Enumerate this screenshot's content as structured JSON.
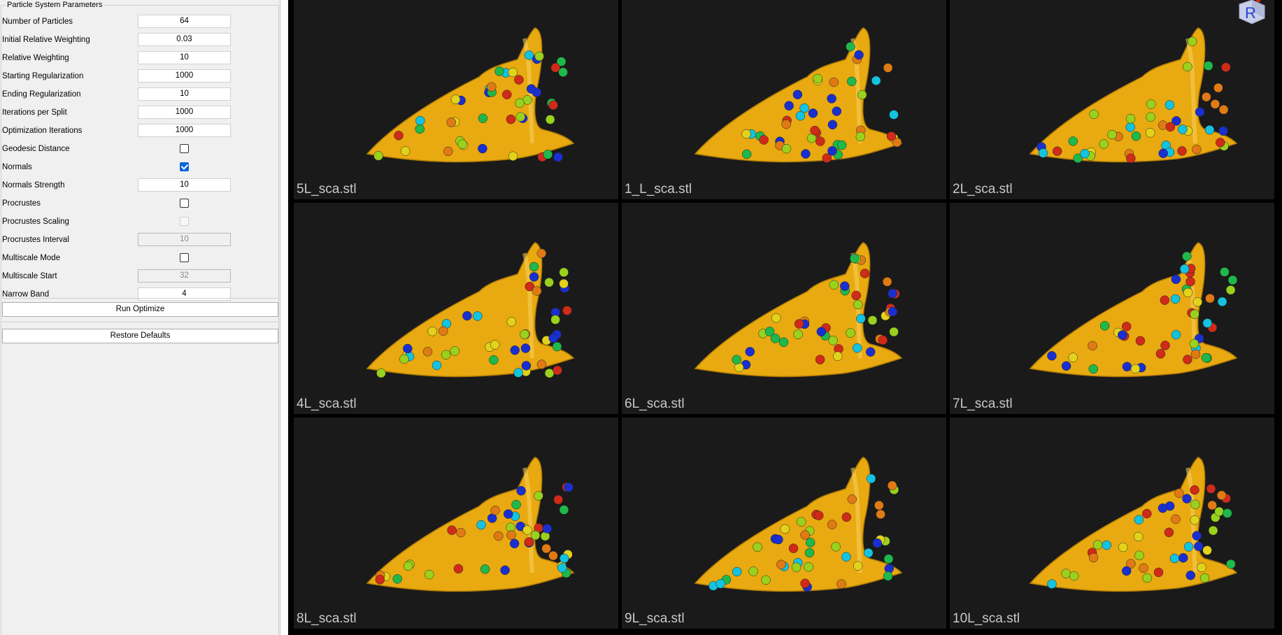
{
  "panel": {
    "group_title": "Particle System Parameters",
    "params": [
      {
        "label": "Number of Particles",
        "type": "text",
        "value": "64"
      },
      {
        "label": "Initial Relative Weighting",
        "type": "text",
        "value": "0.03"
      },
      {
        "label": "Relative Weighting",
        "type": "text",
        "value": "10"
      },
      {
        "label": "Starting Regularization",
        "type": "text",
        "value": "1000"
      },
      {
        "label": "Ending Regularization",
        "type": "text",
        "value": "10"
      },
      {
        "label": "Iterations per Split",
        "type": "text",
        "value": "1000"
      },
      {
        "label": "Optimization Iterations",
        "type": "text",
        "value": "1000"
      },
      {
        "label": "Geodesic Distance",
        "type": "checkbox",
        "checked": false
      },
      {
        "label": "Normals",
        "type": "checkbox",
        "checked": true
      },
      {
        "label": "Normals Strength",
        "type": "text",
        "value": "10"
      },
      {
        "label": "Procrustes",
        "type": "checkbox",
        "checked": false
      },
      {
        "label": "Procrustes Scaling",
        "type": "checkbox",
        "checked": false,
        "disabled": true
      },
      {
        "label": "Procrustes Interval",
        "type": "text",
        "value": "10",
        "disabled": true
      },
      {
        "label": "Multiscale Mode",
        "type": "checkbox",
        "checked": false
      },
      {
        "label": "Multiscale Start",
        "type": "text",
        "value": "32",
        "disabled": true
      },
      {
        "label": "Narrow Band",
        "type": "text",
        "value": "4"
      }
    ],
    "run_label": "Run Optimize",
    "restore_label": "Restore Defaults"
  },
  "viewer": {
    "orientation_marker_label": "R",
    "shapes": [
      {
        "name": "5L_sca.stl"
      },
      {
        "name": "1_L_sca.stl"
      },
      {
        "name": "2L_sca.stl"
      },
      {
        "name": "4L_sca.stl"
      },
      {
        "name": "6L_sca.stl"
      },
      {
        "name": "7L_sca.stl"
      },
      {
        "name": "8L_sca.stl"
      },
      {
        "name": "9L_sca.stl"
      },
      {
        "name": "10L_sca.stl"
      }
    ]
  },
  "colors": {
    "shape_surface": "#e8aa10",
    "viewport_background": "#1a1a1a",
    "particle_palette": [
      "#1a2fd0",
      "#13c3e0",
      "#1fb84a",
      "#9ad11c",
      "#e3d21a",
      "#e07a14",
      "#d02a18"
    ]
  }
}
